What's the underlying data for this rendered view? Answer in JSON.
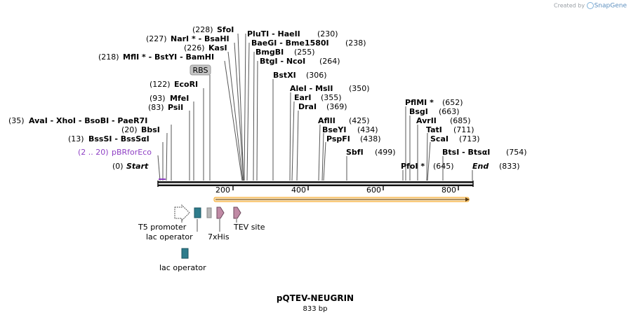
{
  "credit": {
    "prefix": "Created by",
    "brand": "SnapGene"
  },
  "plasmid": {
    "name": "pQTEV-NEUGRIN",
    "length_label": "833 bp"
  },
  "sites": [
    {
      "pos": "(0)",
      "names": [
        "Start"
      ]
    },
    {
      "pos": "(2 .. 20)",
      "names": [
        "pBRforEco"
      ]
    },
    {
      "pos": "(13)",
      "names": [
        "BssSI",
        " - BssSαI"
      ]
    },
    {
      "pos": "(20)",
      "names": [
        "BbsI"
      ]
    },
    {
      "pos": "(35)",
      "names": [
        "AvaI",
        " - XhoI",
        " - BsoBI",
        " - PaeR7I"
      ]
    },
    {
      "pos": "(83)",
      "names": [
        "PsiI"
      ]
    },
    {
      "pos": "(93)",
      "names": [
        "MfeI"
      ]
    },
    {
      "pos": "(122)",
      "names": [
        "EcoRI"
      ]
    },
    {
      "pos": "(218)",
      "names": [
        "MflI *",
        " - BstYI",
        " - BamHI"
      ]
    },
    {
      "pos": "(226)",
      "names": [
        "KasI"
      ]
    },
    {
      "pos": "(227)",
      "names": [
        "NarI *",
        " - BsaHI"
      ]
    },
    {
      "pos": "(228)",
      "names": [
        "SfoI"
      ]
    },
    {
      "pos": "(230)",
      "names": [
        "PluTI",
        " - HaeII"
      ]
    },
    {
      "pos": "(238)",
      "names": [
        "BaeGI",
        " - Bme1580I"
      ]
    },
    {
      "pos": "(255)",
      "names": [
        "BmgBI"
      ]
    },
    {
      "pos": "(264)",
      "names": [
        "BtgI",
        " - NcoI"
      ]
    },
    {
      "pos": "(306)",
      "names": [
        "BstXI"
      ]
    },
    {
      "pos": "(350)",
      "names": [
        "AleI",
        " - MslI"
      ]
    },
    {
      "pos": "(355)",
      "names": [
        "EarI"
      ]
    },
    {
      "pos": "(369)",
      "names": [
        "DraI"
      ]
    },
    {
      "pos": "(425)",
      "names": [
        "AflII"
      ]
    },
    {
      "pos": "(434)",
      "names": [
        "BseYI"
      ]
    },
    {
      "pos": "(438)",
      "names": [
        "PspFI"
      ]
    },
    {
      "pos": "(499)",
      "names": [
        "SbfI"
      ]
    },
    {
      "pos": "(645)",
      "names": [
        "PfoI *"
      ]
    },
    {
      "pos": "(652)",
      "names": [
        "PflMI *"
      ]
    },
    {
      "pos": "(663)",
      "names": [
        "BsgI"
      ]
    },
    {
      "pos": "(685)",
      "names": [
        "AvrII"
      ]
    },
    {
      "pos": "(711)",
      "names": [
        "TatI"
      ]
    },
    {
      "pos": "(713)",
      "names": [
        "ScaI"
      ]
    },
    {
      "pos": "(754)",
      "names": [
        "BtsI",
        " - BtsαI"
      ]
    },
    {
      "pos": "(833)",
      "names": [
        "End"
      ]
    }
  ],
  "ruler": {
    "ticks": [
      "200",
      "400",
      "600",
      "800"
    ]
  },
  "features": {
    "rbs": "RBS",
    "t5": "T5 promoter",
    "lac1": "lac operator",
    "his": "7xHis",
    "tev": "TEV site",
    "lac2": "lac operator"
  },
  "colors": {
    "orf": "#f5a623",
    "operator": "#2e7c8c",
    "tev": "#c08aa5",
    "rbs": "#b8b8b8",
    "primer": "#8e3fc4"
  }
}
